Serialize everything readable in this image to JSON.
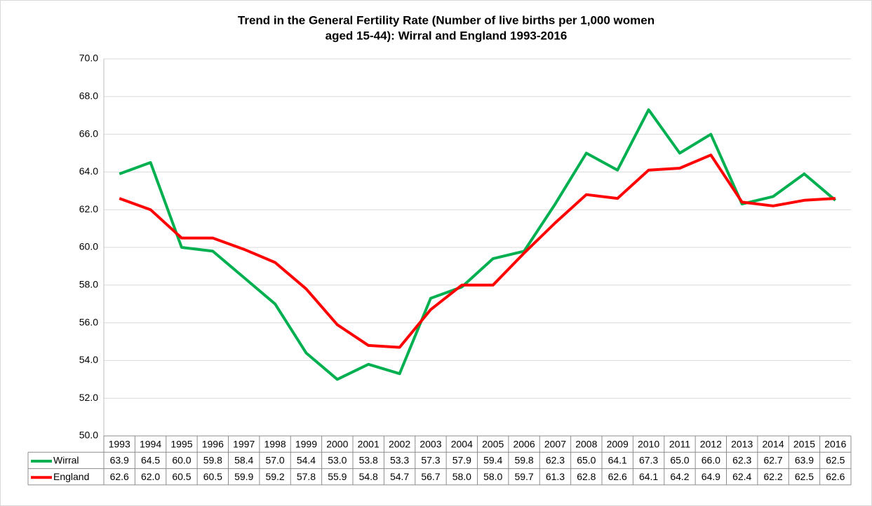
{
  "chart_data": {
    "type": "line",
    "title": [
      "Trend in the General Fertility Rate (Number of live births per 1,000 women",
      "aged 15-44): Wirral and England 1993-2016"
    ],
    "categories": [
      "1993",
      "1994",
      "1995",
      "1996",
      "1997",
      "1998",
      "1999",
      "2000",
      "2001",
      "2002",
      "2003",
      "2004",
      "2005",
      "2006",
      "2007",
      "2008",
      "2009",
      "2010",
      "2011",
      "2012",
      "2013",
      "2014",
      "2015",
      "2016"
    ],
    "series": [
      {
        "name": "Wirral",
        "color": "#00b050",
        "values": [
          63.9,
          64.5,
          60.0,
          59.8,
          58.4,
          57.0,
          54.4,
          53.0,
          53.8,
          53.3,
          57.3,
          57.9,
          59.4,
          59.8,
          62.3,
          65.0,
          64.1,
          67.3,
          65.0,
          66.0,
          62.3,
          62.7,
          63.9,
          62.5
        ],
        "value_labels": [
          "63.9",
          "64.5",
          "60.0",
          "59.8",
          "58.4",
          "57.0",
          "54.4",
          "53.0",
          "53.8",
          "53.3",
          "57.3",
          "57.9",
          "59.4",
          "59.8",
          "62.3",
          "65.0",
          "64.1",
          "67.3",
          "65.0",
          "66.0",
          "62.3",
          "62.7",
          "63.9",
          "62.5"
        ]
      },
      {
        "name": "England",
        "color": "#ff0000",
        "values": [
          62.6,
          62.0,
          60.5,
          60.5,
          59.9,
          59.2,
          57.8,
          55.9,
          54.8,
          54.7,
          56.7,
          58.0,
          58.0,
          59.7,
          61.3,
          62.8,
          62.6,
          64.1,
          64.2,
          64.9,
          62.4,
          62.2,
          62.5,
          62.6
        ],
        "value_labels": [
          "62.6",
          "62.0",
          "60.5",
          "60.5",
          "59.9",
          "59.2",
          "57.8",
          "55.9",
          "54.8",
          "54.7",
          "56.7",
          "58.0",
          "58.0",
          "59.7",
          "61.3",
          "62.8",
          "62.6",
          "64.1",
          "64.2",
          "64.9",
          "62.4",
          "62.2",
          "62.5",
          "62.6"
        ]
      }
    ],
    "ylim": [
      50,
      70
    ],
    "yticks": [
      {
        "value": 50,
        "label": "50.0"
      },
      {
        "value": 52,
        "label": "52.0"
      },
      {
        "value": 54,
        "label": "54.0"
      },
      {
        "value": 56,
        "label": "56.0"
      },
      {
        "value": 58,
        "label": "58.0"
      },
      {
        "value": 60,
        "label": "60.0"
      },
      {
        "value": 62,
        "label": "62.0"
      },
      {
        "value": 64,
        "label": "64.0"
      },
      {
        "value": 66,
        "label": "66.0"
      },
      {
        "value": 68,
        "label": "68.0"
      },
      {
        "value": 70,
        "label": "70.0"
      }
    ],
    "grid": true
  }
}
